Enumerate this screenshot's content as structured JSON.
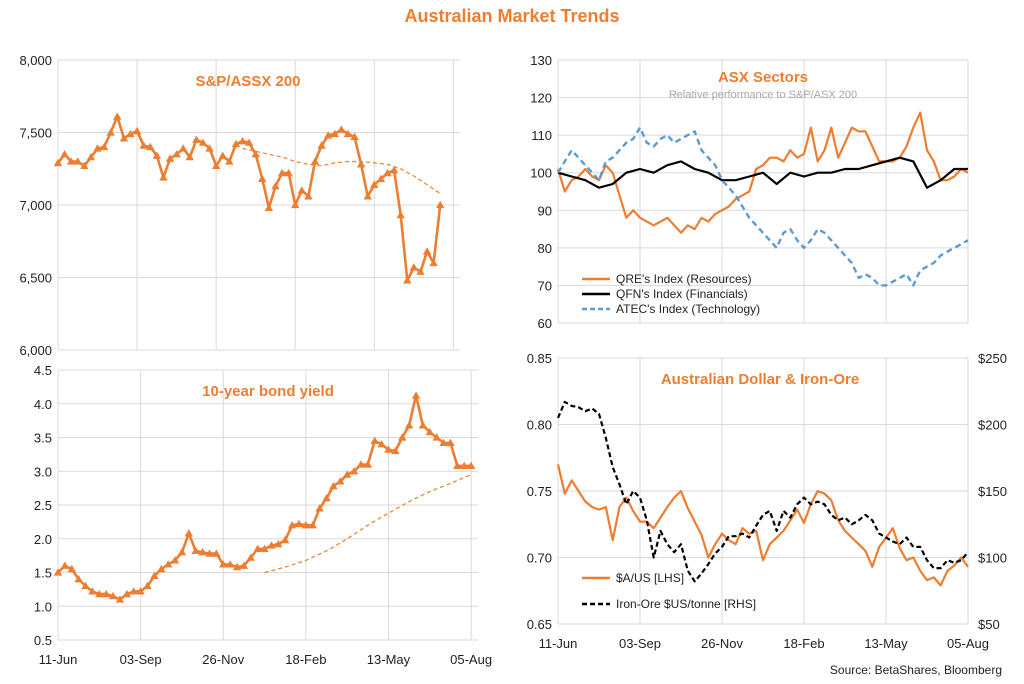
{
  "title": "Australian Market Trends",
  "source": "Source: BetaShares, Bloomberg",
  "colors": {
    "orange": "#ED7D31",
    "black": "#000000",
    "blue": "#5B9BD5",
    "grid": "#d9d9d9"
  },
  "chart_data": [
    {
      "id": "asx200",
      "type": "line",
      "title": "S&P/ASSX 200",
      "ylim": [
        6000,
        8000
      ],
      "y_ticks": [
        6000,
        6500,
        7000,
        7500,
        8000
      ],
      "y_tick_labels": [
        "6,000",
        "6,500",
        "7,000",
        "7,500",
        "8,000"
      ],
      "x_ticks": [
        "11-Jun",
        "03-Sep",
        "26-Nov",
        "18-Feb",
        "13-May",
        "05-Aug"
      ],
      "x_tick_positions": [
        0,
        12,
        24,
        36,
        48,
        60
      ],
      "grid": true,
      "series": [
        {
          "style": "solid-marker",
          "x": [
            0,
            1,
            2,
            3,
            4,
            5,
            6,
            7,
            8,
            9,
            10,
            11,
            12,
            13,
            14,
            15,
            16,
            17,
            18,
            19,
            20,
            21,
            22,
            23,
            24,
            25,
            26,
            27,
            28,
            29,
            30,
            31,
            32,
            33,
            34,
            35,
            36,
            37,
            38,
            39,
            40,
            41,
            42,
            43,
            44,
            45,
            46,
            47,
            48,
            49,
            50,
            51,
            52,
            53,
            54,
            55,
            56,
            57,
            58
          ],
          "values": [
            7290,
            7350,
            7300,
            7300,
            7270,
            7330,
            7390,
            7400,
            7500,
            7610,
            7460,
            7490,
            7510,
            7410,
            7400,
            7340,
            7190,
            7320,
            7350,
            7390,
            7330,
            7450,
            7430,
            7390,
            7270,
            7340,
            7300,
            7420,
            7440,
            7430,
            7350,
            7180,
            6980,
            7130,
            7220,
            7220,
            7000,
            7100,
            7060,
            7300,
            7410,
            7480,
            7490,
            7520,
            7490,
            7470,
            7280,
            7060,
            7140,
            7180,
            7220,
            7240,
            6930,
            6480,
            6570,
            6540,
            6680,
            6600,
            7000
          ]
        },
        {
          "style": "dashed",
          "x": [
            28,
            30,
            32,
            34,
            36,
            38,
            40,
            42,
            44,
            46,
            48,
            50,
            52,
            54,
            56,
            58
          ],
          "values": [
            7390,
            7370,
            7350,
            7330,
            7300,
            7280,
            7270,
            7290,
            7300,
            7300,
            7290,
            7280,
            7250,
            7200,
            7140,
            7080
          ]
        }
      ]
    },
    {
      "id": "bond",
      "type": "line",
      "title": "10-year bond yield",
      "ylim": [
        0.5,
        4.5
      ],
      "y_ticks": [
        0.5,
        1.0,
        1.5,
        2.0,
        2.5,
        3.0,
        3.5,
        4.0,
        4.5
      ],
      "y_tick_labels": [
        "0.5",
        "1.0",
        "1.5",
        "2.0",
        "2.5",
        "3.0",
        "3.5",
        "4.0",
        "4.5"
      ],
      "x_ticks": [
        "11-Jun",
        "03-Sep",
        "26-Nov",
        "18-Feb",
        "13-May",
        "05-Aug"
      ],
      "x_tick_positions": [
        0,
        12,
        24,
        36,
        48,
        60
      ],
      "grid": true,
      "series": [
        {
          "style": "solid-marker",
          "x": [
            0,
            1,
            2,
            3,
            4,
            5,
            6,
            7,
            8,
            9,
            10,
            11,
            12,
            13,
            14,
            15,
            16,
            17,
            18,
            19,
            20,
            21,
            22,
            23,
            24,
            25,
            26,
            27,
            28,
            29,
            30,
            31,
            32,
            33,
            34,
            35,
            36,
            37,
            38,
            39,
            40,
            41,
            42,
            43,
            44,
            45,
            46,
            47,
            48,
            49,
            50,
            51,
            52,
            53,
            54,
            55,
            56,
            57,
            58,
            59,
            60
          ],
          "values": [
            1.5,
            1.6,
            1.55,
            1.4,
            1.3,
            1.22,
            1.18,
            1.18,
            1.15,
            1.1,
            1.18,
            1.22,
            1.22,
            1.3,
            1.45,
            1.55,
            1.62,
            1.68,
            1.8,
            2.08,
            1.82,
            1.8,
            1.78,
            1.78,
            1.62,
            1.62,
            1.58,
            1.6,
            1.72,
            1.85,
            1.85,
            1.9,
            1.92,
            1.98,
            2.2,
            2.22,
            2.2,
            2.2,
            2.45,
            2.6,
            2.78,
            2.85,
            2.95,
            3.0,
            3.1,
            3.1,
            3.45,
            3.4,
            3.32,
            3.3,
            3.5,
            3.68,
            4.12,
            3.68,
            3.58,
            3.5,
            3.42,
            3.42,
            3.08,
            3.08,
            3.08
          ]
        },
        {
          "style": "dashed",
          "x": [
            30,
            33,
            36,
            39,
            42,
            45,
            48,
            51,
            54,
            57,
            60
          ],
          "values": [
            1.5,
            1.58,
            1.68,
            1.82,
            2.0,
            2.2,
            2.38,
            2.55,
            2.7,
            2.82,
            2.95
          ]
        }
      ]
    },
    {
      "id": "sectors",
      "type": "line",
      "title": "ASX Sectors",
      "subtitle": "Relative performance to S&P/ASX 200",
      "ylim": [
        60,
        130
      ],
      "y_ticks": [
        60,
        70,
        80,
        90,
        100,
        110,
        120,
        130
      ],
      "y_tick_labels": [
        "60",
        "70",
        "80",
        "90",
        "100",
        "110",
        "120",
        "130"
      ],
      "grid": true,
      "series": [
        {
          "name": "QRE's Index (Resources)",
          "style": "solid",
          "color": "#ED7D31",
          "x": [
            0,
            1,
            2,
            3,
            4,
            5,
            6,
            7,
            8,
            9,
            10,
            11,
            12,
            13,
            14,
            15,
            16,
            17,
            18,
            19,
            20,
            21,
            22,
            23,
            24,
            25,
            26,
            27,
            28,
            29,
            30,
            31,
            32,
            33,
            34,
            35,
            36,
            37,
            38,
            39,
            40,
            41,
            42,
            43,
            44,
            45,
            46,
            47,
            48,
            49,
            50,
            51,
            52,
            53,
            54,
            55,
            56,
            57,
            58,
            59,
            60
          ],
          "values": [
            101,
            95,
            98,
            99,
            101,
            99,
            98,
            102,
            100,
            94,
            88,
            90,
            88,
            87,
            86,
            87,
            88,
            86,
            84,
            86,
            85,
            88,
            87,
            89,
            90,
            91,
            93,
            94,
            95,
            101,
            102,
            104,
            104,
            103,
            106,
            104,
            105,
            112,
            103,
            106,
            112,
            104,
            108,
            112,
            111,
            111,
            107,
            103,
            103,
            103,
            104,
            107,
            112,
            116,
            106,
            103,
            98,
            98,
            99,
            101,
            100
          ]
        },
        {
          "name": "QFN's Index (Financials)",
          "style": "solid",
          "color": "#000000",
          "x": [
            0,
            2,
            4,
            6,
            8,
            10,
            12,
            14,
            16,
            18,
            20,
            22,
            24,
            26,
            28,
            30,
            32,
            34,
            36,
            38,
            40,
            42,
            44,
            46,
            48,
            50,
            52,
            54,
            56,
            58,
            60
          ],
          "values": [
            100,
            99,
            98,
            96,
            97,
            100,
            101,
            100,
            102,
            103,
            101,
            100,
            98,
            98,
            99,
            100,
            97,
            100,
            99,
            100,
            100,
            101,
            101,
            102,
            103,
            104,
            103,
            96,
            98,
            101,
            101
          ]
        },
        {
          "name": "ATEC's Index (Technology)",
          "style": "dashed",
          "color": "#5B9BD5",
          "x": [
            0,
            1,
            2,
            3,
            4,
            5,
            6,
            7,
            8,
            9,
            10,
            11,
            12,
            13,
            14,
            15,
            16,
            17,
            18,
            19,
            20,
            21,
            22,
            23,
            24,
            25,
            26,
            27,
            28,
            29,
            30,
            31,
            32,
            33,
            34,
            35,
            36,
            37,
            38,
            39,
            40,
            41,
            42,
            43,
            44,
            45,
            46,
            47,
            48,
            49,
            50,
            51,
            52,
            53,
            54,
            55,
            56,
            57,
            58,
            59,
            60
          ],
          "values": [
            100,
            103,
            106,
            104,
            102,
            100,
            98,
            103,
            104,
            106,
            108,
            109,
            112,
            108,
            107,
            109,
            110,
            108,
            109,
            110,
            111,
            106,
            104,
            102,
            98,
            96,
            94,
            91,
            88,
            86,
            84,
            82,
            80,
            84,
            85,
            82,
            80,
            82,
            85,
            84,
            82,
            80,
            78,
            76,
            72,
            73,
            72,
            70,
            70,
            71,
            72,
            73,
            70,
            74,
            75,
            76,
            78,
            79,
            80,
            81,
            82
          ]
        }
      ],
      "legend_position": "bottom-left"
    },
    {
      "id": "aud_iron",
      "type": "line",
      "title": "Australian Dollar  & Iron-Ore",
      "ylim_left": [
        0.65,
        0.85
      ],
      "ylim_right": [
        50,
        250
      ],
      "y_ticks_left": [
        0.65,
        0.7,
        0.75,
        0.8,
        0.85
      ],
      "y_tick_labels_left": [
        "0.65",
        "0.70",
        "0.75",
        "0.80",
        "0.85"
      ],
      "y_ticks_right": [
        50,
        100,
        150,
        200,
        250
      ],
      "y_tick_labels_right": [
        "$50",
        "$100",
        "$150",
        "$200",
        "$250"
      ],
      "x_ticks": [
        "11-Jun",
        "03-Sep",
        "26-Nov",
        "18-Feb",
        "13-May",
        "05-Aug"
      ],
      "x_tick_positions": [
        0,
        12,
        24,
        36,
        48,
        60
      ],
      "grid": true,
      "series": [
        {
          "name": "$A/US [LHS]",
          "axis": "left",
          "style": "solid",
          "color": "#ED7D31",
          "x": [
            0,
            1,
            2,
            3,
            4,
            5,
            6,
            7,
            8,
            9,
            10,
            11,
            12,
            13,
            14,
            15,
            16,
            17,
            18,
            19,
            20,
            21,
            22,
            23,
            24,
            25,
            26,
            27,
            28,
            29,
            30,
            31,
            32,
            33,
            34,
            35,
            36,
            37,
            38,
            39,
            40,
            41,
            42,
            43,
            44,
            45,
            46,
            47,
            48,
            49,
            50,
            51,
            52,
            53,
            54,
            55,
            56,
            57,
            58,
            59,
            60
          ],
          "values": [
            0.77,
            0.748,
            0.758,
            0.75,
            0.742,
            0.738,
            0.736,
            0.738,
            0.713,
            0.738,
            0.745,
            0.735,
            0.727,
            0.727,
            0.722,
            0.73,
            0.738,
            0.745,
            0.75,
            0.737,
            0.727,
            0.717,
            0.7,
            0.71,
            0.718,
            0.713,
            0.71,
            0.722,
            0.718,
            0.72,
            0.698,
            0.71,
            0.715,
            0.72,
            0.728,
            0.736,
            0.726,
            0.74,
            0.75,
            0.748,
            0.743,
            0.728,
            0.72,
            0.715,
            0.71,
            0.705,
            0.693,
            0.708,
            0.715,
            0.722,
            0.707,
            0.698,
            0.7,
            0.69,
            0.683,
            0.685,
            0.679,
            0.69,
            0.694,
            0.7,
            0.693
          ]
        },
        {
          "name": "Iron-Ore $US/tonne [RHS]",
          "axis": "right",
          "style": "dashed",
          "color": "#000000",
          "x": [
            0,
            1,
            2,
            3,
            4,
            5,
            6,
            7,
            8,
            9,
            10,
            11,
            12,
            13,
            14,
            15,
            16,
            17,
            18,
            19,
            20,
            21,
            22,
            23,
            24,
            25,
            26,
            27,
            28,
            29,
            30,
            31,
            32,
            33,
            34,
            35,
            36,
            37,
            38,
            39,
            40,
            41,
            42,
            43,
            44,
            45,
            46,
            47,
            48,
            49,
            50,
            51,
            52,
            53,
            54,
            55,
            56,
            57,
            58,
            59,
            60
          ],
          "values": [
            205,
            217,
            214,
            213,
            210,
            212,
            208,
            190,
            168,
            155,
            140,
            150,
            145,
            128,
            100,
            120,
            110,
            104,
            110,
            90,
            82,
            88,
            95,
            103,
            108,
            116,
            116,
            118,
            115,
            124,
            132,
            135,
            120,
            135,
            130,
            140,
            145,
            140,
            142,
            140,
            132,
            128,
            130,
            125,
            128,
            132,
            128,
            118,
            115,
            112,
            110,
            115,
            108,
            108,
            98,
            92,
            92,
            98,
            96,
            98,
            104
          ]
        }
      ],
      "legend_position": "bottom-left"
    }
  ]
}
